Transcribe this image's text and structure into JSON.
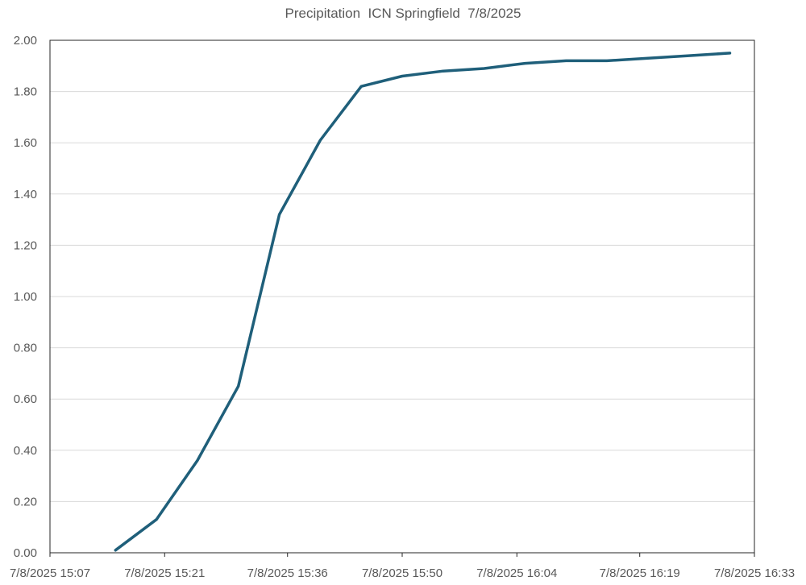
{
  "chart_data": {
    "type": "line",
    "title": "Precipitation  ICN Springfield  7/8/2025",
    "xlabel": "",
    "ylabel": "",
    "ylim": [
      0,
      2
    ],
    "yticks": [
      "0.00",
      "0.20",
      "0.40",
      "0.60",
      "0.80",
      "1.00",
      "1.20",
      "1.40",
      "1.60",
      "1.80",
      "2.00"
    ],
    "xlim": [
      "7/8/2025 15:07",
      "7/8/2025 16:33"
    ],
    "xticks": [
      "7/8/2025 15:07",
      "7/8/2025 15:21",
      "7/8/2025 15:36",
      "7/8/2025 15:50",
      "7/8/2025 16:04",
      "7/8/2025 16:19",
      "7/8/2025 16:33"
    ],
    "grid": true,
    "legend": "none",
    "series": [
      {
        "color": "#1f5f7a",
        "x": [
          "7/8/2025 15:15",
          "7/8/2025 15:20",
          "7/8/2025 15:25",
          "7/8/2025 15:30",
          "7/8/2025 15:35",
          "7/8/2025 15:40",
          "7/8/2025 15:45",
          "7/8/2025 15:50",
          "7/8/2025 15:55",
          "7/8/2025 16:00",
          "7/8/2025 16:05",
          "7/8/2025 16:10",
          "7/8/2025 16:15",
          "7/8/2025 16:20",
          "7/8/2025 16:25",
          "7/8/2025 16:30"
        ],
        "values": [
          0.01,
          0.13,
          0.36,
          0.65,
          1.32,
          1.61,
          1.82,
          1.86,
          1.88,
          1.89,
          1.91,
          1.92,
          1.92,
          1.93,
          1.94,
          1.95
        ]
      }
    ]
  }
}
